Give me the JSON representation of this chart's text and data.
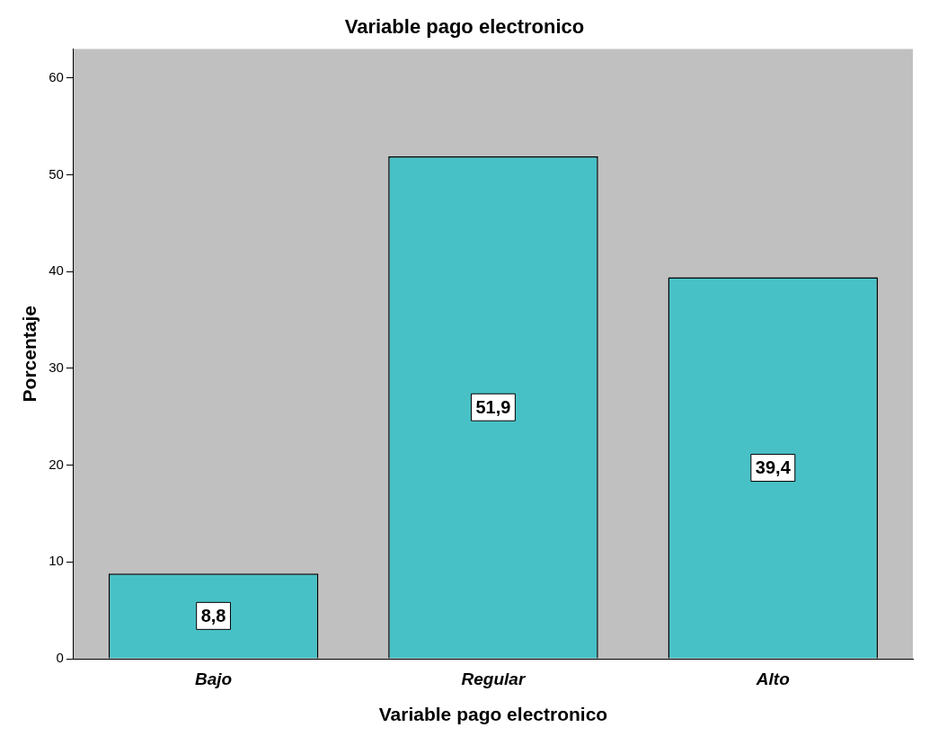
{
  "chart_data": {
    "type": "bar",
    "title": "Variable pago electronico",
    "xlabel": "Variable pago electronico",
    "ylabel": "Porcentaje",
    "categories": [
      "Bajo",
      "Regular",
      "Alto"
    ],
    "values": [
      8.8,
      51.9,
      39.4
    ],
    "value_labels": [
      "8,8",
      "51,9",
      "39,4"
    ],
    "color": "#48c1c6",
    "ylim": [
      0,
      63
    ],
    "yticks": [
      0,
      10,
      20,
      30,
      40,
      50,
      60
    ],
    "grid": false
  }
}
